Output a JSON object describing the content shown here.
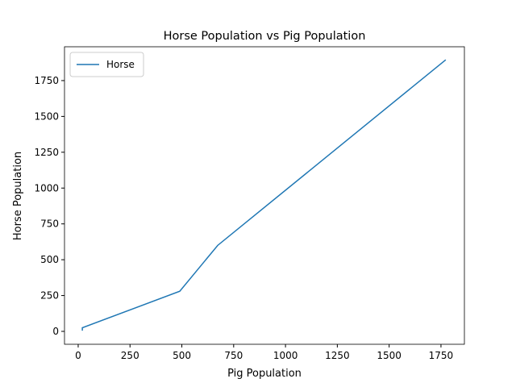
{
  "chart_data": {
    "type": "line",
    "title": "Horse Population vs Pig Population",
    "x_label": "Pig Population",
    "y_label": "Horse Population",
    "x": [
      20,
      20,
      490,
      673,
      1773
    ],
    "series": [
      {
        "name": "Horse",
        "color": "#1f77b4",
        "values": [
          5,
          25,
          280,
          600,
          1895
        ]
      }
    ],
    "xlim": [
      -66,
      1863
    ],
    "xticks": [
      0,
      250,
      500,
      750,
      1000,
      1250,
      1500,
      1750
    ],
    "ylim": [
      -90,
      1986
    ],
    "yticks": [
      0,
      250,
      500,
      750,
      1000,
      1250,
      1500,
      1750
    ],
    "grid": false,
    "legend": "upper-left"
  }
}
